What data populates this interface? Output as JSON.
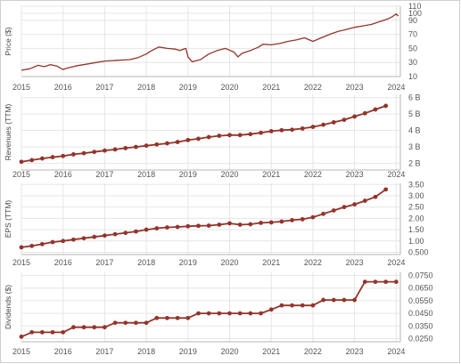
{
  "chart_data": [
    {
      "type": "line",
      "ylabel": "Price ($)",
      "ylim": [
        10,
        110
      ],
      "yticks": [
        "110",
        "100",
        "90",
        "70",
        "50",
        "30",
        "10"
      ],
      "ytick_values": [
        110,
        100,
        90,
        70,
        50,
        30,
        10
      ],
      "xlim": [
        2015,
        2024.1
      ],
      "xticks": [
        "2015",
        "2016",
        "2017",
        "2018",
        "2019",
        "2020",
        "2021",
        "2022",
        "2023",
        "2024"
      ],
      "grid": true,
      "markers": false,
      "series": [
        {
          "x": [
            2015.0,
            2015.2,
            2015.4,
            2015.55,
            2015.7,
            2015.85,
            2016.0,
            2016.1,
            2016.3,
            2016.6,
            2016.8,
            2017.0,
            2017.3,
            2017.6,
            2017.8,
            2018.0,
            2018.1,
            2018.3,
            2018.5,
            2018.7,
            2018.8,
            2018.95,
            2019.0,
            2019.1,
            2019.3,
            2019.5,
            2019.7,
            2019.9,
            2020.1,
            2020.2,
            2020.3,
            2020.5,
            2020.7,
            2020.8,
            2021.0,
            2021.2,
            2021.4,
            2021.6,
            2021.8,
            2022.0,
            2022.2,
            2022.4,
            2022.6,
            2022.8,
            2023.0,
            2023.2,
            2023.4,
            2023.6,
            2023.8,
            2023.9,
            2024.0,
            2024.05
          ],
          "values": [
            19,
            21,
            26,
            24,
            27,
            25,
            20,
            22,
            25,
            28,
            30,
            32,
            33,
            34,
            37,
            42,
            46,
            52,
            50,
            49,
            47,
            50,
            38,
            31,
            34,
            42,
            47,
            50,
            45,
            38,
            43,
            47,
            52,
            56,
            55,
            57,
            60,
            62,
            65,
            60,
            65,
            70,
            74,
            77,
            80,
            82,
            84,
            88,
            92,
            95,
            99,
            96
          ]
        }
      ]
    },
    {
      "type": "line",
      "ylabel": "Revenues (TTM)",
      "ylim": [
        1.6,
        6.2
      ],
      "yticks": [
        "6 B",
        "5 B",
        "4 B",
        "3 B",
        "2 B"
      ],
      "ytick_values": [
        6,
        5,
        4,
        3,
        2
      ],
      "xlim": [
        2015,
        2024.1
      ],
      "xticks": [
        "2015",
        "2016",
        "2017",
        "2018",
        "2019",
        "2020",
        "2021",
        "2022",
        "2023",
        "2024"
      ],
      "grid": true,
      "markers": true,
      "series": [
        {
          "x": [
            2015.0,
            2015.25,
            2015.5,
            2015.75,
            2016.0,
            2016.25,
            2016.5,
            2016.75,
            2017.0,
            2017.25,
            2017.5,
            2017.75,
            2018.0,
            2018.25,
            2018.5,
            2018.75,
            2019.0,
            2019.25,
            2019.5,
            2019.75,
            2020.0,
            2020.25,
            2020.5,
            2020.75,
            2021.0,
            2021.25,
            2021.5,
            2021.75,
            2022.0,
            2022.25,
            2022.5,
            2022.75,
            2023.0,
            2023.25,
            2023.5,
            2023.75
          ],
          "values": [
            2.1,
            2.2,
            2.3,
            2.38,
            2.45,
            2.55,
            2.62,
            2.7,
            2.78,
            2.85,
            2.93,
            3.0,
            3.08,
            3.15,
            3.22,
            3.3,
            3.42,
            3.5,
            3.6,
            3.68,
            3.72,
            3.72,
            3.78,
            3.86,
            3.96,
            4.02,
            4.05,
            4.12,
            4.22,
            4.35,
            4.5,
            4.65,
            4.85,
            5.05,
            5.28,
            5.5
          ]
        }
      ]
    },
    {
      "type": "line",
      "ylabel": "EPS (TTM)",
      "ylim": [
        0.4,
        3.55
      ],
      "yticks": [
        "3.50",
        "3.00",
        "2.50",
        "2.00",
        "1.50",
        "1.00",
        "0.500"
      ],
      "ytick_values": [
        3.5,
        3.0,
        2.5,
        2.0,
        1.5,
        1.0,
        0.5
      ],
      "xlim": [
        2015,
        2024.1
      ],
      "xticks": [
        "2015",
        "2016",
        "2017",
        "2018",
        "2019",
        "2020",
        "2021",
        "2022",
        "2023",
        "2024"
      ],
      "grid": true,
      "markers": true,
      "series": [
        {
          "x": [
            2015.0,
            2015.25,
            2015.5,
            2015.75,
            2016.0,
            2016.25,
            2016.5,
            2016.75,
            2017.0,
            2017.25,
            2017.5,
            2017.75,
            2018.0,
            2018.25,
            2018.5,
            2018.75,
            2019.0,
            2019.25,
            2019.5,
            2019.75,
            2020.0,
            2020.25,
            2020.5,
            2020.75,
            2021.0,
            2021.25,
            2021.5,
            2021.75,
            2022.0,
            2022.25,
            2022.5,
            2022.75,
            2023.0,
            2023.25,
            2023.5,
            2023.75
          ],
          "values": [
            0.72,
            0.78,
            0.86,
            0.95,
            1.0,
            1.06,
            1.12,
            1.18,
            1.24,
            1.3,
            1.36,
            1.42,
            1.5,
            1.56,
            1.6,
            1.62,
            1.65,
            1.67,
            1.68,
            1.72,
            1.78,
            1.72,
            1.74,
            1.8,
            1.82,
            1.86,
            1.92,
            1.96,
            2.05,
            2.2,
            2.35,
            2.5,
            2.62,
            2.78,
            2.95,
            3.28
          ]
        }
      ]
    },
    {
      "type": "line",
      "ylabel": "Dividends ($)",
      "ylim": [
        0.0225,
        0.0775
      ],
      "yticks": [
        "0.0750",
        "0.0650",
        "0.0550",
        "0.0450",
        "0.0350",
        "0.0250"
      ],
      "ytick_values": [
        0.075,
        0.065,
        0.055,
        0.045,
        0.035,
        0.025
      ],
      "xlim": [
        2015,
        2024.1
      ],
      "xticks": [
        "2015",
        "2016",
        "2017",
        "2018",
        "2019",
        "2020",
        "2021",
        "2022",
        "2023",
        "2024"
      ],
      "grid": true,
      "markers": true,
      "series": [
        {
          "x": [
            2015.0,
            2015.25,
            2015.5,
            2015.75,
            2016.0,
            2016.25,
            2016.5,
            2016.75,
            2017.0,
            2017.25,
            2017.5,
            2017.75,
            2018.0,
            2018.25,
            2018.5,
            2018.75,
            2019.0,
            2019.25,
            2019.5,
            2019.75,
            2020.0,
            2020.25,
            2020.5,
            2020.75,
            2021.0,
            2021.25,
            2021.5,
            2021.75,
            2022.0,
            2022.25,
            2022.5,
            2022.75,
            2023.0,
            2023.25,
            2023.5,
            2023.75,
            2024.0
          ],
          "values": [
            0.0265,
            0.03,
            0.03,
            0.03,
            0.03,
            0.034,
            0.034,
            0.034,
            0.034,
            0.0375,
            0.0375,
            0.0375,
            0.0375,
            0.0413,
            0.0413,
            0.0413,
            0.0413,
            0.045,
            0.045,
            0.045,
            0.045,
            0.045,
            0.045,
            0.045,
            0.048,
            0.0513,
            0.0513,
            0.0513,
            0.0513,
            0.0556,
            0.0556,
            0.0556,
            0.0556,
            0.07,
            0.07,
            0.07,
            0.07
          ]
        }
      ]
    }
  ],
  "colors": {
    "line": "#93342b",
    "grid": "#e6e6e6",
    "axis": "#b5b5b5",
    "tick_text": "#555555",
    "border": "#cfcfcf"
  }
}
